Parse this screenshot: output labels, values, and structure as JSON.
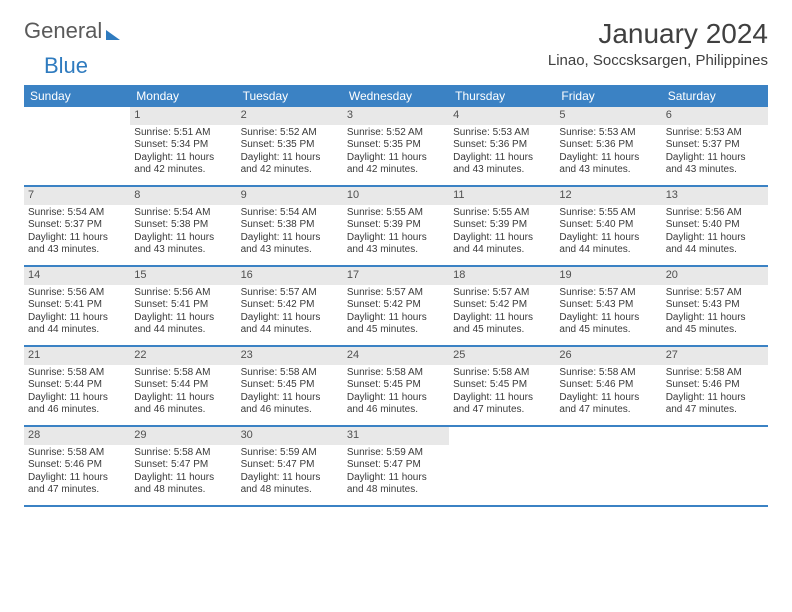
{
  "brand": {
    "part1": "General",
    "part2": "Blue"
  },
  "title": "January 2024",
  "location": "Linao, Soccsksargen, Philippines",
  "colors": {
    "header_bg": "#3b82c4",
    "header_text": "#ffffff",
    "daynum_bg": "#e8e8e8",
    "row_border": "#3b82c4",
    "text": "#3a3a3a",
    "page_bg": "#ffffff"
  },
  "weekdays": [
    "Sunday",
    "Monday",
    "Tuesday",
    "Wednesday",
    "Thursday",
    "Friday",
    "Saturday"
  ],
  "weeks": [
    [
      null,
      {
        "n": "1",
        "sr": "5:51 AM",
        "ss": "5:34 PM",
        "dl": "11 hours and 42 minutes."
      },
      {
        "n": "2",
        "sr": "5:52 AM",
        "ss": "5:35 PM",
        "dl": "11 hours and 42 minutes."
      },
      {
        "n": "3",
        "sr": "5:52 AM",
        "ss": "5:35 PM",
        "dl": "11 hours and 42 minutes."
      },
      {
        "n": "4",
        "sr": "5:53 AM",
        "ss": "5:36 PM",
        "dl": "11 hours and 43 minutes."
      },
      {
        "n": "5",
        "sr": "5:53 AM",
        "ss": "5:36 PM",
        "dl": "11 hours and 43 minutes."
      },
      {
        "n": "6",
        "sr": "5:53 AM",
        "ss": "5:37 PM",
        "dl": "11 hours and 43 minutes."
      }
    ],
    [
      {
        "n": "7",
        "sr": "5:54 AM",
        "ss": "5:37 PM",
        "dl": "11 hours and 43 minutes."
      },
      {
        "n": "8",
        "sr": "5:54 AM",
        "ss": "5:38 PM",
        "dl": "11 hours and 43 minutes."
      },
      {
        "n": "9",
        "sr": "5:54 AM",
        "ss": "5:38 PM",
        "dl": "11 hours and 43 minutes."
      },
      {
        "n": "10",
        "sr": "5:55 AM",
        "ss": "5:39 PM",
        "dl": "11 hours and 43 minutes."
      },
      {
        "n": "11",
        "sr": "5:55 AM",
        "ss": "5:39 PM",
        "dl": "11 hours and 44 minutes."
      },
      {
        "n": "12",
        "sr": "5:55 AM",
        "ss": "5:40 PM",
        "dl": "11 hours and 44 minutes."
      },
      {
        "n": "13",
        "sr": "5:56 AM",
        "ss": "5:40 PM",
        "dl": "11 hours and 44 minutes."
      }
    ],
    [
      {
        "n": "14",
        "sr": "5:56 AM",
        "ss": "5:41 PM",
        "dl": "11 hours and 44 minutes."
      },
      {
        "n": "15",
        "sr": "5:56 AM",
        "ss": "5:41 PM",
        "dl": "11 hours and 44 minutes."
      },
      {
        "n": "16",
        "sr": "5:57 AM",
        "ss": "5:42 PM",
        "dl": "11 hours and 44 minutes."
      },
      {
        "n": "17",
        "sr": "5:57 AM",
        "ss": "5:42 PM",
        "dl": "11 hours and 45 minutes."
      },
      {
        "n": "18",
        "sr": "5:57 AM",
        "ss": "5:42 PM",
        "dl": "11 hours and 45 minutes."
      },
      {
        "n": "19",
        "sr": "5:57 AM",
        "ss": "5:43 PM",
        "dl": "11 hours and 45 minutes."
      },
      {
        "n": "20",
        "sr": "5:57 AM",
        "ss": "5:43 PM",
        "dl": "11 hours and 45 minutes."
      }
    ],
    [
      {
        "n": "21",
        "sr": "5:58 AM",
        "ss": "5:44 PM",
        "dl": "11 hours and 46 minutes."
      },
      {
        "n": "22",
        "sr": "5:58 AM",
        "ss": "5:44 PM",
        "dl": "11 hours and 46 minutes."
      },
      {
        "n": "23",
        "sr": "5:58 AM",
        "ss": "5:45 PM",
        "dl": "11 hours and 46 minutes."
      },
      {
        "n": "24",
        "sr": "5:58 AM",
        "ss": "5:45 PM",
        "dl": "11 hours and 46 minutes."
      },
      {
        "n": "25",
        "sr": "5:58 AM",
        "ss": "5:45 PM",
        "dl": "11 hours and 47 minutes."
      },
      {
        "n": "26",
        "sr": "5:58 AM",
        "ss": "5:46 PM",
        "dl": "11 hours and 47 minutes."
      },
      {
        "n": "27",
        "sr": "5:58 AM",
        "ss": "5:46 PM",
        "dl": "11 hours and 47 minutes."
      }
    ],
    [
      {
        "n": "28",
        "sr": "5:58 AM",
        "ss": "5:46 PM",
        "dl": "11 hours and 47 minutes."
      },
      {
        "n": "29",
        "sr": "5:58 AM",
        "ss": "5:47 PM",
        "dl": "11 hours and 48 minutes."
      },
      {
        "n": "30",
        "sr": "5:59 AM",
        "ss": "5:47 PM",
        "dl": "11 hours and 48 minutes."
      },
      {
        "n": "31",
        "sr": "5:59 AM",
        "ss": "5:47 PM",
        "dl": "11 hours and 48 minutes."
      },
      null,
      null,
      null
    ]
  ],
  "labels": {
    "sunrise": "Sunrise:",
    "sunset": "Sunset:",
    "daylight": "Daylight:"
  }
}
